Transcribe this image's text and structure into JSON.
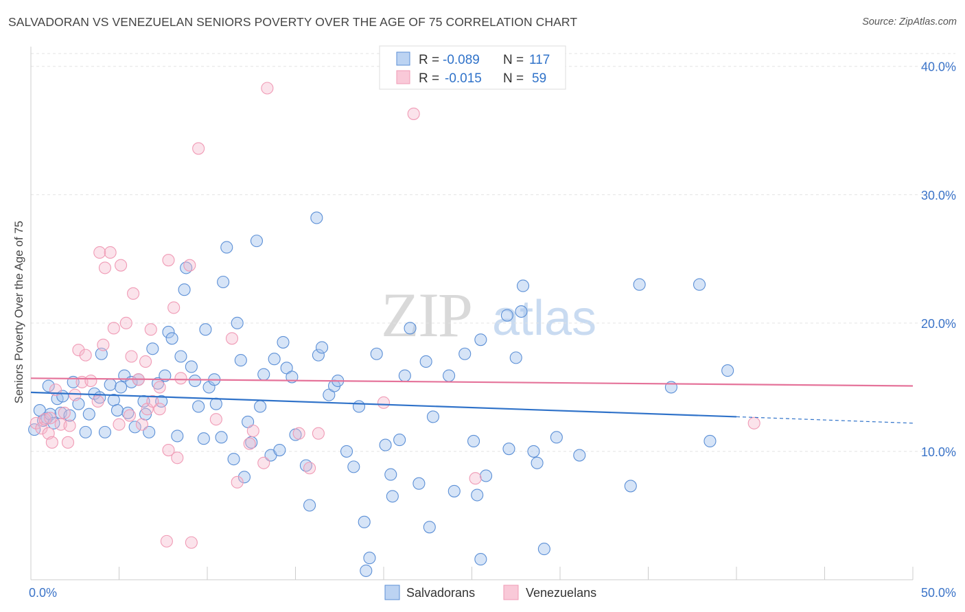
{
  "chart_data": {
    "type": "scatter",
    "title": "SALVADORAN VS VENEZUELAN SENIORS POVERTY OVER THE AGE OF 75 CORRELATION CHART",
    "source": "Source: ZipAtlas.com",
    "ylabel": "Seniors Poverty Over the Age of 75",
    "xlabel": "",
    "xlim": [
      0,
      50
    ],
    "ylim": [
      0,
      41
    ],
    "x_tick_labels": [
      "0.0%",
      "50.0%"
    ],
    "y_ticks": [
      10,
      20,
      30,
      40
    ],
    "y_tick_labels": [
      "10.0%",
      "20.0%",
      "30.0%",
      "40.0%"
    ],
    "grid": true,
    "legend_position": "top-center",
    "watermark": "ZIPatlas",
    "colors": {
      "salvadorans": "#5b8fd6",
      "venezuelans": "#f09ab5",
      "line_salv": "#2f72c9",
      "line_venez": "#e5739a",
      "axis_text": "#3a73c8"
    },
    "stats": [
      {
        "r_label": "R =",
        "r_value": "-0.089",
        "n_label": "N =",
        "n_value": "117"
      },
      {
        "r_label": "R =",
        "r_value": "-0.015",
        "n_label": "N =",
        "n_value": "59"
      }
    ],
    "series": [
      {
        "name": "Salvadorans",
        "trend": {
          "x": [
            0,
            40,
            50
          ],
          "y": [
            14.6,
            12.7,
            12.2
          ],
          "solid_until": 40
        },
        "points": [
          [
            0.2,
            11.7
          ],
          [
            0.5,
            13.2
          ],
          [
            0.7,
            12.4
          ],
          [
            0.9,
            12.6
          ],
          [
            1.0,
            15.1
          ],
          [
            1.1,
            12.9
          ],
          [
            1.3,
            12.2
          ],
          [
            1.5,
            14.1
          ],
          [
            1.7,
            13.0
          ],
          [
            1.8,
            14.3
          ],
          [
            2.2,
            12.8
          ],
          [
            2.4,
            15.4
          ],
          [
            2.7,
            13.7
          ],
          [
            3.1,
            11.5
          ],
          [
            3.3,
            12.9
          ],
          [
            3.6,
            14.5
          ],
          [
            3.9,
            14.2
          ],
          [
            4.0,
            17.6
          ],
          [
            4.2,
            11.5
          ],
          [
            4.5,
            15.2
          ],
          [
            4.7,
            14.0
          ],
          [
            4.9,
            13.2
          ],
          [
            5.1,
            15.0
          ],
          [
            5.3,
            15.9
          ],
          [
            5.5,
            13.0
          ],
          [
            5.7,
            15.4
          ],
          [
            5.9,
            11.9
          ],
          [
            6.1,
            15.6
          ],
          [
            6.4,
            13.9
          ],
          [
            6.5,
            12.9
          ],
          [
            6.7,
            11.5
          ],
          [
            6.9,
            18.0
          ],
          [
            7.2,
            15.3
          ],
          [
            7.4,
            13.9
          ],
          [
            7.6,
            15.9
          ],
          [
            7.8,
            19.3
          ],
          [
            8.0,
            18.8
          ],
          [
            8.3,
            11.2
          ],
          [
            8.5,
            17.4
          ],
          [
            8.7,
            22.6
          ],
          [
            8.8,
            24.3
          ],
          [
            9.1,
            16.6
          ],
          [
            9.3,
            15.5
          ],
          [
            9.5,
            13.5
          ],
          [
            9.8,
            11.0
          ],
          [
            9.9,
            19.5
          ],
          [
            10.1,
            15.0
          ],
          [
            10.4,
            15.6
          ],
          [
            10.5,
            13.7
          ],
          [
            10.8,
            11.1
          ],
          [
            10.9,
            23.2
          ],
          [
            11.1,
            25.9
          ],
          [
            11.5,
            9.4
          ],
          [
            11.7,
            20.0
          ],
          [
            11.9,
            17.1
          ],
          [
            12.1,
            8.0
          ],
          [
            12.3,
            12.3
          ],
          [
            12.5,
            10.7
          ],
          [
            12.8,
            26.4
          ],
          [
            13.0,
            13.5
          ],
          [
            13.2,
            16.0
          ],
          [
            13.6,
            9.7
          ],
          [
            13.8,
            17.2
          ],
          [
            14.1,
            10.1
          ],
          [
            14.3,
            18.5
          ],
          [
            14.5,
            16.5
          ],
          [
            14.8,
            15.8
          ],
          [
            15.0,
            11.3
          ],
          [
            15.6,
            8.9
          ],
          [
            15.8,
            5.8
          ],
          [
            16.2,
            28.2
          ],
          [
            16.3,
            17.5
          ],
          [
            16.5,
            18.1
          ],
          [
            16.9,
            14.4
          ],
          [
            17.2,
            15.1
          ],
          [
            17.4,
            15.5
          ],
          [
            17.9,
            10.0
          ],
          [
            18.3,
            8.8
          ],
          [
            18.6,
            13.5
          ],
          [
            18.9,
            4.5
          ],
          [
            19.0,
            0.7
          ],
          [
            19.2,
            1.7
          ],
          [
            19.6,
            17.6
          ],
          [
            20.1,
            10.5
          ],
          [
            20.5,
            6.5
          ],
          [
            20.4,
            8.2
          ],
          [
            20.9,
            10.9
          ],
          [
            21.2,
            15.9
          ],
          [
            21.5,
            19.6
          ],
          [
            22.0,
            7.5
          ],
          [
            22.4,
            17.0
          ],
          [
            22.6,
            4.1
          ],
          [
            22.8,
            12.7
          ],
          [
            23.7,
            15.9
          ],
          [
            24.0,
            6.9
          ],
          [
            24.6,
            17.6
          ],
          [
            25.1,
            10.8
          ],
          [
            25.3,
            6.6
          ],
          [
            25.5,
            18.7
          ],
          [
            25.8,
            8.1
          ],
          [
            25.5,
            1.6
          ],
          [
            27.0,
            20.6
          ],
          [
            27.1,
            10.2
          ],
          [
            27.5,
            17.3
          ],
          [
            27.8,
            20.9
          ],
          [
            27.9,
            22.9
          ],
          [
            28.5,
            10.0
          ],
          [
            28.7,
            9.1
          ],
          [
            29.1,
            2.4
          ],
          [
            29.8,
            11.1
          ],
          [
            31.1,
            9.7
          ],
          [
            34.0,
            7.3
          ],
          [
            34.5,
            23.0
          ],
          [
            36.3,
            15.0
          ],
          [
            37.9,
            23.0
          ],
          [
            38.5,
            10.8
          ],
          [
            39.5,
            16.3
          ]
        ]
      },
      {
        "name": "Venezuelans",
        "trend": {
          "x": [
            0,
            50
          ],
          "y": [
            15.7,
            15.1
          ],
          "solid_until": 50
        },
        "points": [
          [
            0.3,
            12.2
          ],
          [
            0.6,
            11.8
          ],
          [
            0.8,
            12.5
          ],
          [
            1.0,
            11.4
          ],
          [
            1.1,
            12.6
          ],
          [
            1.2,
            10.7
          ],
          [
            1.4,
            14.8
          ],
          [
            1.7,
            12.1
          ],
          [
            1.9,
            13.0
          ],
          [
            2.1,
            10.7
          ],
          [
            2.2,
            12.0
          ],
          [
            2.5,
            14.4
          ],
          [
            2.7,
            17.9
          ],
          [
            2.9,
            15.4
          ],
          [
            3.1,
            17.5
          ],
          [
            3.4,
            15.5
          ],
          [
            3.8,
            13.9
          ],
          [
            3.9,
            25.5
          ],
          [
            4.1,
            18.3
          ],
          [
            4.2,
            24.3
          ],
          [
            4.5,
            25.5
          ],
          [
            4.7,
            19.6
          ],
          [
            5.0,
            12.1
          ],
          [
            5.1,
            24.5
          ],
          [
            5.4,
            20.0
          ],
          [
            5.6,
            12.8
          ],
          [
            5.8,
            22.3
          ],
          [
            5.7,
            17.4
          ],
          [
            6.1,
            15.6
          ],
          [
            6.3,
            12.1
          ],
          [
            6.6,
            13.3
          ],
          [
            6.5,
            17.0
          ],
          [
            6.9,
            13.9
          ],
          [
            6.8,
            19.5
          ],
          [
            7.3,
            13.3
          ],
          [
            7.3,
            15.0
          ],
          [
            7.8,
            10.1
          ],
          [
            7.8,
            24.9
          ],
          [
            8.1,
            21.2
          ],
          [
            8.3,
            9.5
          ],
          [
            8.5,
            15.7
          ],
          [
            9.0,
            24.5
          ],
          [
            9.5,
            33.6
          ],
          [
            10.5,
            12.5
          ],
          [
            11.4,
            18.8
          ],
          [
            11.7,
            7.6
          ],
          [
            12.4,
            10.6
          ],
          [
            12.6,
            11.6
          ],
          [
            13.2,
            9.1
          ],
          [
            13.4,
            38.3
          ],
          [
            15.2,
            11.4
          ],
          [
            15.8,
            8.7
          ],
          [
            16.3,
            11.4
          ],
          [
            20.0,
            13.8
          ],
          [
            21.7,
            36.3
          ],
          [
            25.2,
            7.9
          ],
          [
            7.7,
            3.0
          ],
          [
            9.1,
            2.9
          ],
          [
            41.0,
            12.2
          ]
        ]
      }
    ]
  },
  "legend": {
    "items": [
      "Salvadorans",
      "Venezuelans"
    ]
  }
}
